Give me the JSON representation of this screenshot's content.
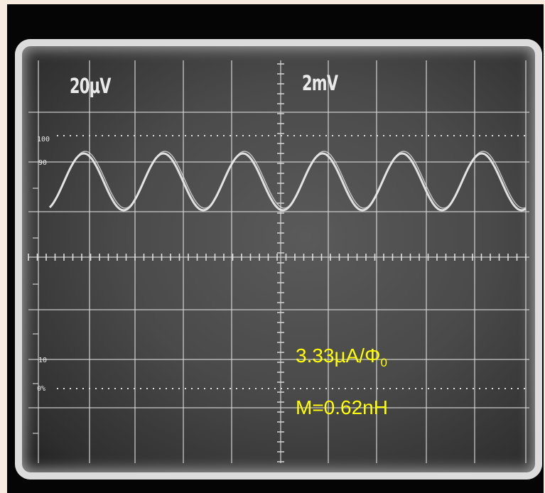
{
  "screen": {
    "channel_1_scale": "20µV",
    "channel_2_scale": "2mV",
    "graticule_markers": [
      "100",
      "90",
      "10",
      "0%"
    ]
  },
  "annotation": {
    "ratio_main": "3.33µA/Φ",
    "ratio_sub": "0",
    "mutual_inductance": "M=0.62nH"
  },
  "colors": {
    "annotation_text": "#ffff00",
    "trace": "#e8e8e8",
    "screen": "#4a4a4a",
    "bezel": "#050505"
  }
}
